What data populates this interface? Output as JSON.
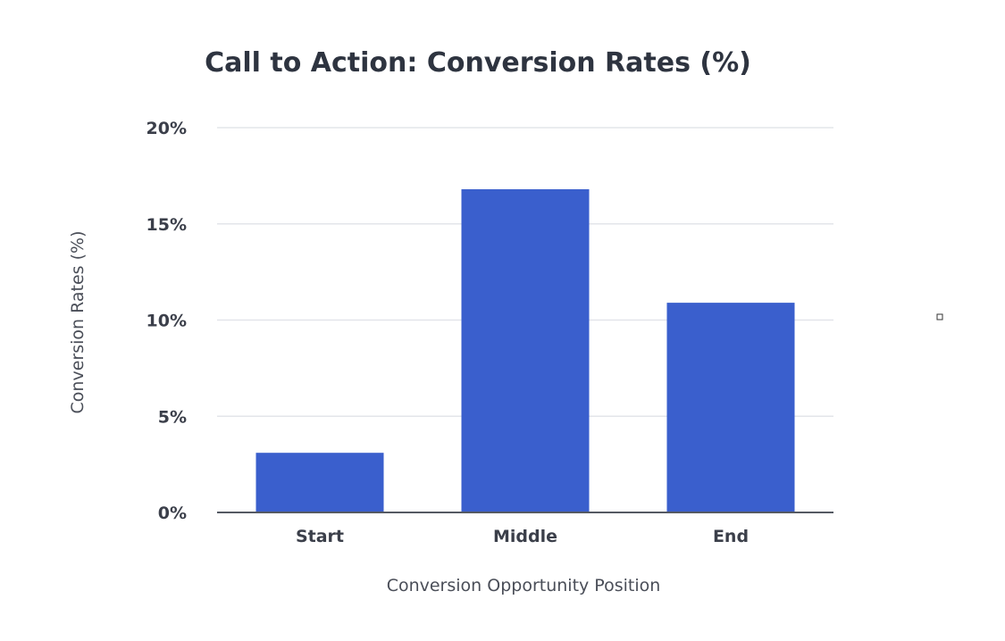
{
  "chart_data": {
    "type": "bar",
    "title": "Call to Action: Conversion Rates (%)",
    "xlabel": "Conversion Opportunity Position",
    "ylabel": "Conversion Rates (%)",
    "categories": [
      "Start",
      "Middle",
      "End"
    ],
    "values": [
      3.1,
      16.8,
      10.9
    ],
    "ylim": [
      0,
      20
    ],
    "yticks": [
      0,
      5,
      10,
      15,
      20
    ],
    "ytick_labels": [
      "0%",
      "5%",
      "10%",
      "15%",
      "20%"
    ],
    "grid": true,
    "legend": "none",
    "bar_color": "#3a5fcd"
  }
}
